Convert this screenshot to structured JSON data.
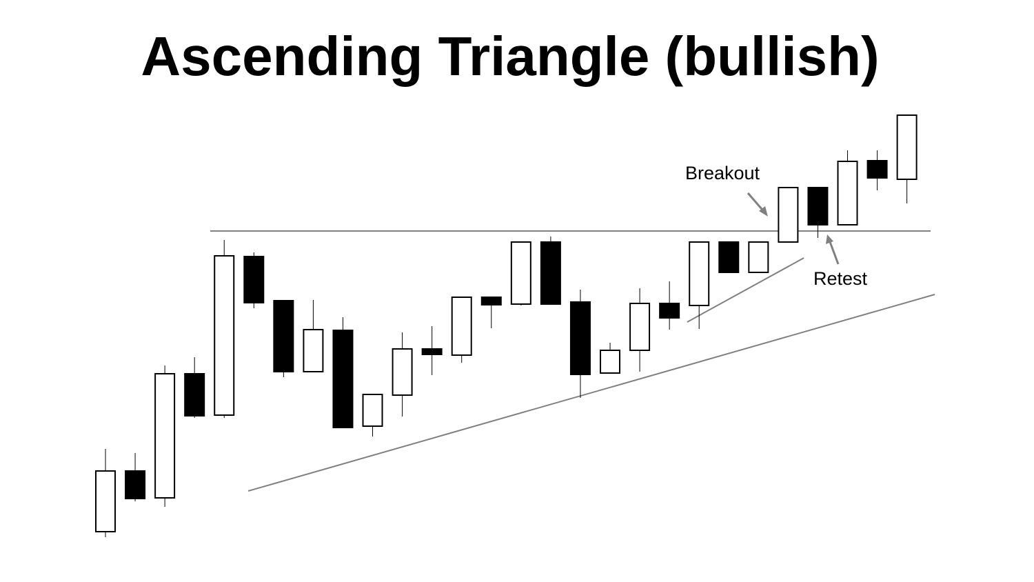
{
  "chart_data": {
    "type": "candlestick",
    "title": "Ascending Triangle (bullish)",
    "open": [
      5.8,
      23.4,
      15.6,
      51.6,
      39.6,
      85.6,
      72.8,
      52.2,
      64.2,
      36.4,
      45.4,
      58.8,
      57,
      73.8,
      71.8,
      89.8,
      72.4,
      51.8,
      58.4,
      72,
      71.4,
      89.8,
      81,
      89.8,
      105.6,
      94.8,
      113.4,
      108
    ],
    "high": [
      29.8,
      28.6,
      54,
      56.4,
      90.4,
      86.8,
      72.8,
      73,
      68,
      45.6,
      63.6,
      65.4,
      73.8,
      73.8,
      89.8,
      91.4,
      76,
      60.6,
      76.4,
      78.4,
      89.8,
      89.8,
      89.8,
      105.6,
      105.6,
      116.4,
      116.4,
      126.6
    ],
    "low": [
      4.2,
      14.6,
      13,
      38.8,
      38.8,
      70.6,
      50.6,
      52.2,
      36,
      33.4,
      39.2,
      51.2,
      54.8,
      64.8,
      71.4,
      71.8,
      44.6,
      51.8,
      52.2,
      64.4,
      64.6,
      81,
      81,
      89.8,
      91,
      94.8,
      104.8,
      101
    ],
    "close": [
      23.4,
      15.4,
      51.6,
      39.4,
      85.8,
      72.2,
      52.2,
      64.4,
      36,
      45.6,
      58.8,
      57.2,
      73.8,
      71.6,
      89.8,
      71.8,
      51.4,
      58.4,
      72,
      67.8,
      89.8,
      81,
      89.8,
      105.6,
      94.8,
      113.2,
      108.4,
      126.6
    ],
    "up_color": "#ffffff",
    "down_color": "#000000",
    "line_color": "#808080",
    "ylim": [
      0,
      130
    ],
    "trend_lines": [
      {
        "x": [
          3.53,
          27.8
        ],
        "values": [
          93,
          93
        ]
      },
      {
        "x": [
          4.81,
          27.94
        ],
        "values": [
          17.6,
          74.6
        ]
      },
      {
        "x": [
          19.6,
          23.53
        ],
        "values": [
          66.6,
          85.2
        ]
      }
    ],
    "annotations": [
      "Breakout",
      "Retest"
    ]
  }
}
